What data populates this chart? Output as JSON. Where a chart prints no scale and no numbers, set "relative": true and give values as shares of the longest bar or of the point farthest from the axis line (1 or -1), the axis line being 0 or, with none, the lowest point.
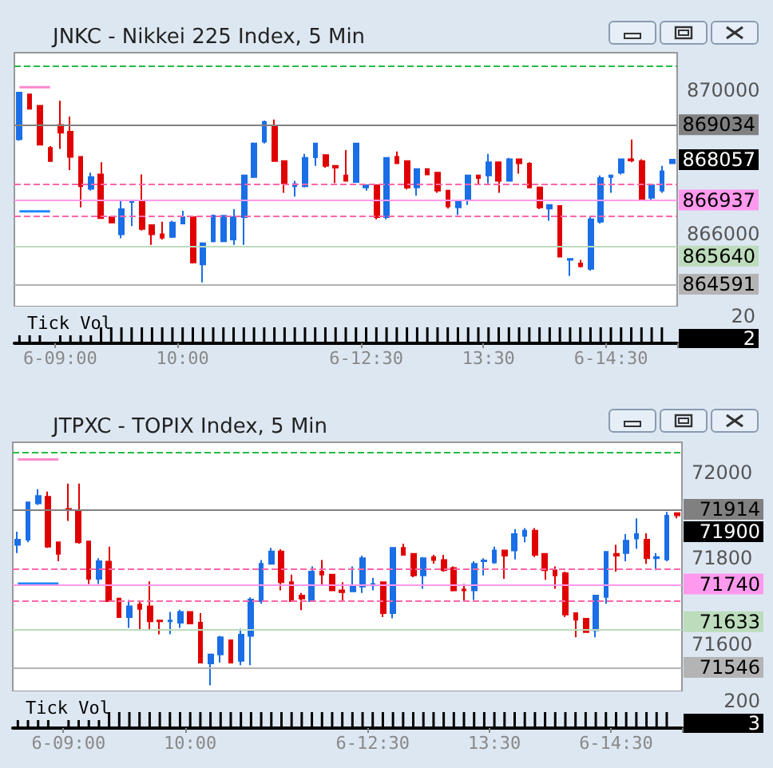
{
  "chart_data": [
    {
      "type": "candlestick",
      "title": "JNKC - Nikkei 225 Index, 5 Min",
      "tick_labels": "y",
      "categories": [
        null,
        null,
        null,
        null,
        null,
        null,
        null,
        null,
        null,
        null,
        null,
        null,
        null,
        null,
        null,
        null,
        null,
        null,
        null,
        null,
        null,
        null,
        null,
        null,
        null,
        null,
        null,
        null,
        null,
        null,
        null,
        null,
        null,
        null,
        null,
        null,
        null,
        null,
        null,
        null,
        null,
        null,
        null,
        null,
        null,
        null,
        null,
        null,
        null,
        null,
        null,
        null,
        null,
        null,
        null,
        null,
        null,
        null,
        null,
        null,
        null,
        null,
        null,
        null,
        null
      ],
      "ohlc": [
        [
          868630,
          869930,
          868590,
          869930
        ],
        [
          869880,
          869880,
          869480,
          869480
        ],
        [
          869560,
          869560,
          868480,
          868480
        ],
        [
          868390,
          868440,
          868020,
          868020
        ],
        [
          869030,
          869700,
          868360,
          868810
        ],
        [
          868840,
          869260,
          867770,
          868140
        ],
        [
          868140,
          868140,
          866730,
          867320
        ],
        [
          867250,
          867700,
          867200,
          867580
        ],
        [
          867650,
          867990,
          866430,
          866430
        ],
        [
          866460,
          866460,
          866310,
          866310
        ],
        [
          865980,
          866950,
          865870,
          866680
        ],
        [
          866880,
          866940,
          866210,
          866910
        ],
        [
          866910,
          867650,
          866090,
          866130
        ],
        [
          866240,
          866240,
          865690,
          865980
        ],
        [
          865980,
          866330,
          865840,
          865890
        ],
        [
          865910,
          866360,
          865880,
          866310
        ],
        [
          866280,
          866640,
          866280,
          866460
        ],
        [
          866460,
          866460,
          865170,
          865200
        ],
        [
          865140,
          865760,
          864640,
          865730
        ],
        [
          865790,
          866530,
          865760,
          866500
        ],
        [
          865790,
          866500,
          865790,
          866500
        ],
        [
          865840,
          866680,
          865690,
          866460
        ],
        [
          866460,
          867620,
          865690,
          867620
        ],
        [
          867580,
          868540,
          867550,
          868510
        ],
        [
          868560,
          869150,
          868510,
          869110
        ],
        [
          868990,
          869180,
          868020,
          868020
        ],
        [
          868020,
          868020,
          867140,
          867400
        ],
        [
          867320,
          867470,
          867030,
          867380
        ],
        [
          867320,
          868220,
          867290,
          868110
        ],
        [
          868130,
          868510,
          867890,
          868510
        ],
        [
          868190,
          868190,
          867840,
          867890
        ],
        [
          867890,
          867890,
          867410,
          867840
        ],
        [
          867620,
          868330,
          867470,
          867470
        ],
        [
          867440,
          868510,
          867440,
          868510
        ],
        [
          867290,
          867350,
          867200,
          867350
        ],
        [
          867350,
          867350,
          866400,
          866460
        ],
        [
          866460,
          868110,
          866400,
          868110
        ],
        [
          868140,
          868290,
          867960,
          867960
        ],
        [
          868020,
          868020,
          867230,
          867280
        ],
        [
          867290,
          867800,
          867060,
          867800
        ],
        [
          867800,
          867800,
          867650,
          867650
        ],
        [
          867700,
          867700,
          867140,
          867200
        ],
        [
          867200,
          867200,
          866700,
          866760
        ],
        [
          866730,
          866940,
          866520,
          866910
        ],
        [
          866950,
          867620,
          866800,
          867620
        ],
        [
          867620,
          867620,
          867350,
          867550
        ],
        [
          867620,
          868220,
          867400,
          867990
        ],
        [
          867990,
          867990,
          867140,
          867470
        ],
        [
          867470,
          868110,
          867470,
          868070
        ],
        [
          868070,
          868070,
          867670,
          867960
        ],
        [
          867950,
          867990,
          867260,
          867290
        ],
        [
          867290,
          867290,
          866680,
          866730
        ],
        [
          866700,
          866800,
          866360,
          866800
        ],
        [
          866770,
          866770,
          865360,
          865360
        ],
        [
          865270,
          865300,
          864820,
          865300
        ],
        [
          865170,
          865270,
          865060,
          865090
        ],
        [
          865020,
          866460,
          864970,
          866400
        ],
        [
          866330,
          867620,
          866280,
          867550
        ],
        [
          867580,
          867620,
          867140,
          867620
        ],
        [
          867700,
          868070,
          867650,
          868070
        ],
        [
          868070,
          868620,
          867990,
          868040
        ],
        [
          868020,
          868070,
          866950,
          866950
        ],
        [
          867000,
          867350,
          866950,
          867350
        ],
        [
          867200,
          867890,
          867140,
          867740
        ],
        [
          867960,
          868060,
          867960,
          868060
        ]
      ],
      "colors": [
        "#1a6ee6",
        "#e00000",
        "#e00000",
        "#e00000",
        "#e00000",
        "#e00000",
        "#e00000",
        "#1a6ee6",
        "#e00000",
        "#e00000",
        "#1a6ee6",
        "#1a6ee6",
        "#e00000",
        "#e00000",
        "#e00000",
        "#1a6ee6",
        "#1a6ee6",
        "#e00000",
        "#1a6ee6",
        "#1a6ee6",
        "#1a6ee6",
        "#1a6ee6",
        "#1a6ee6",
        "#1a6ee6",
        "#1a6ee6",
        "#e00000",
        "#e00000",
        "#1a6ee6",
        "#1a6ee6",
        "#1a6ee6",
        "#e00000",
        "#e00000",
        "#e00000",
        "#1a6ee6",
        "#1a6ee6",
        "#e00000",
        "#1a6ee6",
        "#e00000",
        "#e00000",
        "#1a6ee6",
        "#e00000",
        "#e00000",
        "#e00000",
        "#1a6ee6",
        "#1a6ee6",
        "#e00000",
        "#1a6ee6",
        "#e00000",
        "#1a6ee6",
        "#e00000",
        "#e00000",
        "#e00000",
        "#1a6ee6",
        "#e00000",
        "#1a6ee6",
        "#e00000",
        "#1a6ee6",
        "#1a6ee6",
        "#1a6ee6",
        "#1a6ee6",
        "#e00000",
        "#e00000",
        "#1a6ee6",
        "#1a6ee6",
        "#1a6ee6"
      ],
      "series": [
        {
          "type": "line",
          "color": "#ff88cc",
          "values": [
            870080,
            870080,
            870080,
            870080,
            null,
            null,
            null,
            null,
            null,
            null,
            null,
            null,
            null,
            null,
            null,
            null,
            null,
            null,
            null,
            null,
            null,
            null,
            null,
            null,
            null,
            null,
            null,
            null,
            null,
            null,
            null,
            null,
            null,
            null,
            null,
            null,
            null,
            null,
            null,
            null,
            null,
            null,
            null,
            null,
            null,
            null,
            null,
            null,
            null,
            null,
            null,
            null,
            null,
            null,
            null,
            null,
            null,
            null,
            null,
            null,
            null,
            null,
            null,
            null,
            null
          ]
        },
        {
          "type": "line",
          "color": "#1e88ff",
          "values": [
            866620,
            866620,
            866620,
            866620,
            null,
            null,
            null,
            null,
            null,
            null,
            null,
            null,
            null,
            null,
            null,
            null,
            null,
            null,
            null,
            null,
            null,
            null,
            null,
            null,
            null,
            null,
            null,
            null,
            null,
            null,
            null,
            null,
            null,
            null,
            null,
            null,
            null,
            null,
            null,
            null,
            null,
            null,
            null,
            null,
            null,
            null,
            null,
            null,
            null,
            null,
            null,
            null,
            null,
            null,
            null,
            null,
            null,
            null,
            null,
            null,
            null,
            null,
            null,
            null,
            null
          ]
        }
      ],
      "ylim": [
        863970,
        871040
      ],
      "yticks": [
        870000,
        866000
      ],
      "ref_lines": [
        {
          "axis": "y",
          "value": 870668,
          "color": "#22bb44",
          "line_style": "dashed"
        },
        {
          "axis": "y",
          "value": 869034,
          "label": "869034",
          "color": "#808080"
        },
        {
          "axis": "y",
          "value": 867382,
          "color": "#ff66aa",
          "line_style": "dashed"
        },
        {
          "axis": "y",
          "value": 866937,
          "label": "866937",
          "color": "#ff99ee"
        },
        {
          "axis": "y",
          "value": 866489,
          "color": "#ff66aa",
          "line_style": "dashed"
        },
        {
          "axis": "y",
          "value": 865640,
          "label": "865640",
          "color": "#bcdcbc"
        },
        {
          "axis": "y",
          "value": 864591,
          "label": "864591",
          "color": "#b4b4b4"
        }
      ],
      "annotations": [
        "868057"
      ]
    },
    {
      "type": "bar",
      "title": "Tick Vol",
      "relative": true,
      "color": "#000000",
      "tick_labels": "x",
      "categories": [
        null,
        null,
        null,
        null,
        "6-09:00",
        null,
        null,
        null,
        null,
        null,
        null,
        null,
        null,
        null,
        null,
        null,
        "10:00",
        null,
        null,
        null,
        null,
        null,
        null,
        null,
        null,
        null,
        null,
        null,
        null,
        null,
        null,
        null,
        null,
        null,
        "6-12:30",
        null,
        null,
        null,
        null,
        null,
        null,
        null,
        null,
        null,
        null,
        null,
        "13:30",
        null,
        null,
        null,
        null,
        null,
        null,
        null,
        null,
        null,
        null,
        null,
        "6-14:30",
        null,
        null,
        null,
        null,
        null,
        null
      ],
      "values": [
        0.5,
        0.5,
        0.5,
        0.1,
        0.5,
        0.5,
        0.5,
        0.5,
        1,
        1,
        1,
        1,
        1,
        1,
        1,
        1,
        1,
        1,
        1,
        1,
        1,
        1,
        1,
        1,
        1,
        1,
        1,
        1,
        1,
        1,
        1,
        1,
        1,
        1,
        1,
        1,
        1,
        1,
        1,
        1,
        1,
        1,
        1,
        1,
        1,
        1,
        1,
        1,
        1,
        1,
        1,
        1,
        1,
        1,
        1,
        1,
        1,
        1,
        1,
        1,
        1,
        1,
        1,
        1,
        0.1
      ],
      "annotations": [
        "20",
        "2"
      ]
    },
    {
      "type": "candlestick",
      "title": "JTPXC - TOPIX Index, 5 Min",
      "tick_labels": "y",
      "categories": [
        null,
        null,
        null,
        null,
        null,
        null,
        null,
        null,
        null,
        null,
        null,
        null,
        null,
        null,
        null,
        null,
        null,
        null,
        null,
        null,
        null,
        null,
        null,
        null,
        null,
        null,
        null,
        null,
        null,
        null,
        null,
        null,
        null,
        null,
        null,
        null,
        null,
        null,
        null,
        null,
        null,
        null,
        null,
        null,
        null,
        null,
        null,
        null,
        null,
        null,
        null,
        null,
        null,
        null,
        null,
        null,
        null,
        null,
        null,
        null,
        null,
        null,
        null,
        null,
        null,
        null
      ],
      "ohlc": [
        [
          71831,
          71862,
          71812,
          71843
        ],
        [
          71843,
          71930,
          71837,
          71930
        ],
        [
          71928,
          71961,
          71924,
          71945
        ],
        [
          71943,
          71955,
          71824,
          71827
        ],
        [
          71837,
          71837,
          71793,
          71810
        ],
        [
          71915,
          71974,
          71887,
          71912
        ],
        [
          71912,
          71974,
          71834,
          71837
        ],
        [
          71839,
          71839,
          71740,
          71752
        ],
        [
          71752,
          71800,
          71740,
          71793
        ],
        [
          71792,
          71827,
          71700,
          71700
        ],
        [
          71706,
          71706,
          71663,
          71663
        ],
        [
          71663,
          71703,
          71638,
          71688
        ],
        [
          71692,
          71698,
          71634,
          71682
        ],
        [
          71688,
          71746,
          71634,
          71653
        ],
        [
          71655,
          71655,
          71623,
          71653
        ],
        [
          71653,
          71675,
          71623,
          71655
        ],
        [
          71650,
          71680,
          71638,
          71675
        ],
        [
          71675,
          71675,
          71648,
          71648
        ],
        [
          71650,
          71672,
          71557,
          71557
        ],
        [
          71555,
          71576,
          71504,
          71576
        ],
        [
          71576,
          71619,
          71557,
          71616
        ],
        [
          71609,
          71609,
          71555,
          71557
        ],
        [
          71561,
          71636,
          71551,
          71622
        ],
        [
          71619,
          71709,
          71551,
          71704
        ],
        [
          71700,
          71796,
          71694,
          71787
        ],
        [
          71787,
          71824,
          71785,
          71816
        ],
        [
          71816,
          71821,
          71725,
          71744
        ],
        [
          71744,
          71762,
          71700,
          71700
        ],
        [
          71713,
          71719,
          71679,
          71706
        ],
        [
          71700,
          71781,
          71698,
          71769
        ],
        [
          71769,
          71796,
          71737,
          71762
        ],
        [
          71762,
          71762,
          71725,
          71725
        ],
        [
          71725,
          71744,
          71700,
          71721
        ],
        [
          71723,
          71781,
          71723,
          71737
        ],
        [
          71734,
          71806,
          71719,
          71800
        ],
        [
          71737,
          71754,
          71725,
          71740
        ],
        [
          71744,
          71744,
          71663,
          71672
        ],
        [
          71672,
          71824,
          71660,
          71824
        ],
        [
          71824,
          71834,
          71808,
          71808
        ],
        [
          71810,
          71810,
          71756,
          71760
        ],
        [
          71760,
          71803,
          71729,
          71800
        ],
        [
          71803,
          71808,
          71787,
          71796
        ],
        [
          71796,
          71808,
          71769,
          71772
        ],
        [
          71777,
          71781,
          71723,
          71725
        ],
        [
          71727,
          71740,
          71698,
          71725
        ],
        [
          71725,
          71793,
          71703,
          71787
        ],
        [
          71793,
          71800,
          71760,
          71795
        ],
        [
          71790,
          71827,
          71787,
          71818
        ],
        [
          71818,
          71818,
          71752,
          71806
        ],
        [
          71818,
          71868,
          71797,
          71856
        ],
        [
          71852,
          71870,
          71837,
          71864
        ],
        [
          71864,
          71870,
          71803,
          71808
        ],
        [
          71810,
          71810,
          71750,
          71772
        ],
        [
          71772,
          71781,
          71729,
          71760
        ],
        [
          71765,
          71769,
          71663,
          71669
        ],
        [
          71672,
          71672,
          71616,
          71657
        ],
        [
          71659,
          71660,
          71626,
          71628
        ],
        [
          71632,
          71715,
          71616,
          71713
        ],
        [
          71710,
          71815,
          71694,
          71815
        ],
        [
          71810,
          71831,
          71769,
          71806
        ],
        [
          71812,
          71856,
          71793,
          71841
        ],
        [
          71846,
          71893,
          71822,
          71856
        ],
        [
          71843,
          71858,
          71787,
          71800
        ],
        [
          71800,
          71812,
          71772,
          71803
        ],
        [
          71797,
          71908,
          71793,
          71899
        ],
        [
          71905,
          71905,
          71893,
          71900
        ]
      ],
      "colors": [
        "#1a6ee6",
        "#1a6ee6",
        "#1a6ee6",
        "#e00000",
        "#e00000",
        "#e00000",
        "#e00000",
        "#e00000",
        "#1a6ee6",
        "#e00000",
        "#e00000",
        "#1a6ee6",
        "#e00000",
        "#e00000",
        "#e00000",
        "#1a6ee6",
        "#1a6ee6",
        "#e00000",
        "#e00000",
        "#1a6ee6",
        "#1a6ee6",
        "#e00000",
        "#1a6ee6",
        "#1a6ee6",
        "#1a6ee6",
        "#1a6ee6",
        "#e00000",
        "#e00000",
        "#e00000",
        "#1a6ee6",
        "#e00000",
        "#e00000",
        "#e00000",
        "#1a6ee6",
        "#1a6ee6",
        "#1a6ee6",
        "#e00000",
        "#1a6ee6",
        "#e00000",
        "#e00000",
        "#1a6ee6",
        "#e00000",
        "#e00000",
        "#e00000",
        "#e00000",
        "#1a6ee6",
        "#1a6ee6",
        "#1a6ee6",
        "#e00000",
        "#1a6ee6",
        "#1a6ee6",
        "#e00000",
        "#e00000",
        "#e00000",
        "#e00000",
        "#e00000",
        "#e00000",
        "#1a6ee6",
        "#1a6ee6",
        "#e00000",
        "#1a6ee6",
        "#1a6ee6",
        "#e00000",
        "#1a6ee6",
        "#1a6ee6",
        "#e00000"
      ],
      "series": [
        {
          "type": "line",
          "color": "#ff88cc",
          "values": [
            72030,
            72030,
            72030,
            72030,
            72030,
            null,
            null,
            null,
            null,
            null,
            null,
            null,
            null,
            null,
            null,
            null,
            null,
            null,
            null,
            null,
            null,
            null,
            null,
            null,
            null,
            null,
            null,
            null,
            null,
            null,
            null,
            null,
            null,
            null,
            null,
            null,
            null,
            null,
            null,
            null,
            null,
            null,
            null,
            null,
            null,
            null,
            null,
            null,
            null,
            null,
            null,
            null,
            null,
            null,
            null,
            null,
            null,
            null,
            null,
            null,
            null,
            null,
            null,
            null,
            null,
            null
          ]
        },
        {
          "type": "line",
          "color": "#1e88ff",
          "values": [
            71741,
            71741,
            71741,
            71741,
            71741,
            null,
            null,
            null,
            null,
            null,
            null,
            null,
            null,
            null,
            null,
            null,
            null,
            null,
            null,
            null,
            null,
            null,
            null,
            null,
            null,
            null,
            null,
            null,
            null,
            null,
            null,
            null,
            null,
            null,
            null,
            null,
            null,
            null,
            null,
            null,
            null,
            null,
            null,
            null,
            null,
            null,
            null,
            null,
            null,
            null,
            null,
            null,
            null,
            null,
            null,
            null,
            null,
            null,
            null,
            null,
            null,
            null,
            null,
            null,
            null,
            null
          ]
        }
      ],
      "ylim": [
        71490,
        72070
      ],
      "yticks": [
        72000,
        71800,
        71600
      ],
      "ref_lines": [
        {
          "axis": "y",
          "value": 72048,
          "color": "#22bb44",
          "line_style": "dashed"
        },
        {
          "axis": "y",
          "value": 71914,
          "label": "71914",
          "color": "#808080"
        },
        {
          "axis": "y",
          "value": 71776,
          "color": "#ff66aa",
          "line_style": "dashed"
        },
        {
          "axis": "y",
          "value": 71740,
          "label": "71740",
          "color": "#ff99ee"
        },
        {
          "axis": "y",
          "value": 71701,
          "color": "#ff66aa",
          "line_style": "dashed"
        },
        {
          "axis": "y",
          "value": 71633,
          "label": "71633",
          "color": "#bcdcbc"
        },
        {
          "axis": "y",
          "value": 71546,
          "label": "71546",
          "color": "#b4b4b4"
        }
      ],
      "annotations": [
        "71900"
      ]
    },
    {
      "type": "bar",
      "title": "Tick Vol",
      "relative": true,
      "color": "#000000",
      "tick_labels": "x",
      "categories": [
        null,
        null,
        null,
        null,
        null,
        "6-09:00",
        null,
        null,
        null,
        null,
        null,
        null,
        null,
        null,
        null,
        null,
        null,
        "10:00",
        null,
        null,
        null,
        null,
        null,
        null,
        null,
        null,
        null,
        null,
        null,
        null,
        null,
        null,
        null,
        null,
        null,
        "6-12:30",
        null,
        null,
        null,
        null,
        null,
        null,
        null,
        null,
        null,
        null,
        null,
        "13:30",
        null,
        null,
        null,
        null,
        null,
        null,
        null,
        null,
        null,
        null,
        null,
        "6-14:30",
        null,
        null,
        null,
        null,
        null,
        null
      ],
      "values": [
        0.5,
        0.5,
        0.5,
        0.5,
        0.1,
        0.5,
        0.5,
        0.5,
        0.5,
        1,
        1,
        1,
        1,
        1,
        1,
        1,
        1,
        1,
        1,
        1,
        1,
        1,
        1,
        1,
        1,
        1,
        1,
        1,
        1,
        1,
        1,
        1,
        1,
        1,
        1,
        1,
        1,
        1,
        1,
        1,
        1,
        1,
        1,
        1,
        1,
        1,
        1,
        1,
        1,
        1,
        1,
        1,
        1,
        1,
        1,
        1,
        1,
        1,
        1,
        1,
        1,
        1,
        1,
        1,
        1,
        0.1
      ],
      "annotations": [
        "200",
        "3"
      ]
    }
  ]
}
